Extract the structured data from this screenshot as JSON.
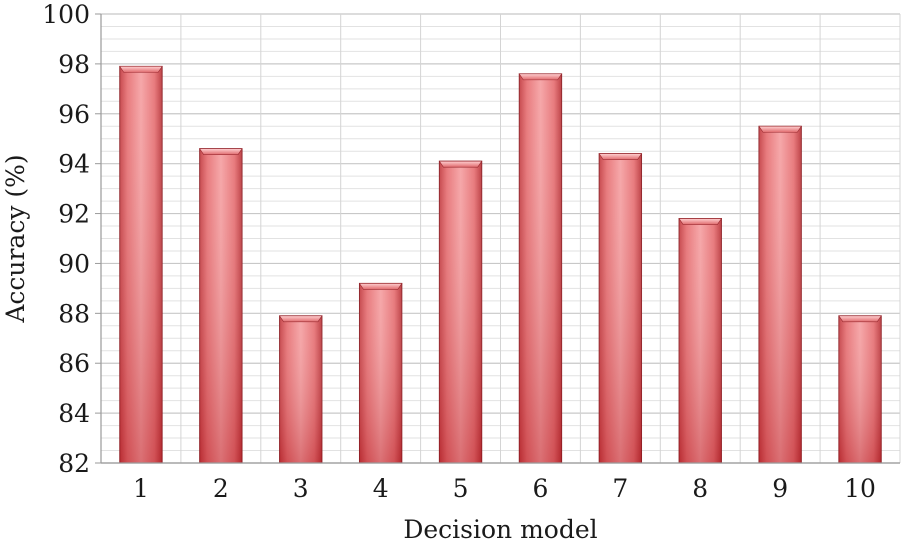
{
  "chart_data": {
    "type": "bar",
    "title": "",
    "xlabel": "Decision model",
    "ylabel": "Accuracy (%)",
    "categories": [
      "1",
      "2",
      "3",
      "4",
      "5",
      "6",
      "7",
      "8",
      "9",
      "10"
    ],
    "values": [
      97.9,
      94.6,
      87.9,
      89.2,
      94.1,
      97.6,
      94.4,
      91.8,
      95.5,
      87.9
    ],
    "ylim": [
      82,
      100
    ],
    "yticks": [
      82,
      84,
      86,
      88,
      90,
      92,
      94,
      96,
      98,
      100
    ],
    "grid": true,
    "bar_color": "#e0575b",
    "legend": "none"
  }
}
